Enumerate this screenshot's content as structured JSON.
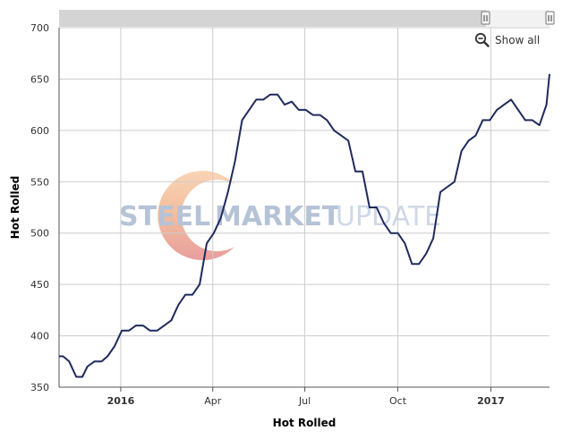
{
  "chart_data": {
    "type": "line",
    "xlabel": "Hot Rolled",
    "ylabel": "Hot Rolled",
    "ylim": [
      350,
      700
    ],
    "yticks": [
      350,
      400,
      450,
      500,
      550,
      600,
      650,
      700
    ],
    "xlim": [
      "2015-11-01",
      "2017-02-28"
    ],
    "xticks": [
      {
        "date": "2016-01-01",
        "label": "2016",
        "bold": true
      },
      {
        "date": "2016-04-01",
        "label": "Apr",
        "bold": false
      },
      {
        "date": "2016-07-01",
        "label": "Jul",
        "bold": false
      },
      {
        "date": "2016-10-01",
        "label": "Oct",
        "bold": false
      },
      {
        "date": "2017-01-01",
        "label": "2017",
        "bold": true
      }
    ],
    "grid": true,
    "line_color": "#1f2a5c",
    "series": [
      {
        "points": [
          [
            "2015-11-01",
            380
          ],
          [
            "2015-11-05",
            380
          ],
          [
            "2015-11-11",
            375
          ],
          [
            "2015-11-18",
            360
          ],
          [
            "2015-11-24",
            360
          ],
          [
            "2015-11-29",
            370
          ],
          [
            "2015-12-06",
            375
          ],
          [
            "2015-12-13",
            375
          ],
          [
            "2015-12-19",
            380
          ],
          [
            "2015-12-26",
            390
          ],
          [
            "2016-01-02",
            405
          ],
          [
            "2016-01-09",
            405
          ],
          [
            "2016-01-16",
            410
          ],
          [
            "2016-01-23",
            410
          ],
          [
            "2016-01-30",
            405
          ],
          [
            "2016-02-06",
            405
          ],
          [
            "2016-02-13",
            410
          ],
          [
            "2016-02-20",
            415
          ],
          [
            "2016-02-27",
            430
          ],
          [
            "2016-03-05",
            440
          ],
          [
            "2016-03-12",
            440
          ],
          [
            "2016-03-19",
            450
          ],
          [
            "2016-03-26",
            490
          ],
          [
            "2016-04-02",
            500
          ],
          [
            "2016-04-09",
            515
          ],
          [
            "2016-04-16",
            540
          ],
          [
            "2016-04-23",
            570
          ],
          [
            "2016-04-30",
            610
          ],
          [
            "2016-05-07",
            620
          ],
          [
            "2016-05-14",
            630
          ],
          [
            "2016-05-21",
            630
          ],
          [
            "2016-05-28",
            635
          ],
          [
            "2016-06-04",
            635
          ],
          [
            "2016-06-11",
            625
          ],
          [
            "2016-06-18",
            628
          ],
          [
            "2016-06-25",
            620
          ],
          [
            "2016-07-02",
            620
          ],
          [
            "2016-07-09",
            615
          ],
          [
            "2016-07-16",
            615
          ],
          [
            "2016-07-23",
            610
          ],
          [
            "2016-07-30",
            600
          ],
          [
            "2016-08-06",
            595
          ],
          [
            "2016-08-13",
            590
          ],
          [
            "2016-08-20",
            560
          ],
          [
            "2016-08-27",
            560
          ],
          [
            "2016-09-03",
            525
          ],
          [
            "2016-09-10",
            525
          ],
          [
            "2016-09-17",
            510
          ],
          [
            "2016-09-24",
            500
          ],
          [
            "2016-10-01",
            500
          ],
          [
            "2016-10-08",
            490
          ],
          [
            "2016-10-15",
            470
          ],
          [
            "2016-10-22",
            470
          ],
          [
            "2016-10-29",
            480
          ],
          [
            "2016-11-05",
            495
          ],
          [
            "2016-11-12",
            540
          ],
          [
            "2016-11-19",
            545
          ],
          [
            "2016-11-26",
            550
          ],
          [
            "2016-12-03",
            580
          ],
          [
            "2016-12-10",
            590
          ],
          [
            "2016-12-17",
            595
          ],
          [
            "2016-12-24",
            610
          ],
          [
            "2016-12-31",
            610
          ],
          [
            "2017-01-07",
            620
          ],
          [
            "2017-01-14",
            625
          ],
          [
            "2017-01-21",
            630
          ],
          [
            "2017-01-28",
            620
          ],
          [
            "2017-02-04",
            610
          ],
          [
            "2017-02-11",
            610
          ],
          [
            "2017-02-18",
            605
          ],
          [
            "2017-02-25",
            625
          ],
          [
            "2017-02-28",
            655
          ]
        ]
      }
    ],
    "watermark": {
      "left": "STEEL",
      "middle": "MARKET",
      "right": "UPDATE"
    }
  },
  "controls": {
    "show_all_label": "Show all"
  },
  "icons": {
    "zoom": "zoom-out-icon",
    "handle": "range-handle-icon"
  }
}
